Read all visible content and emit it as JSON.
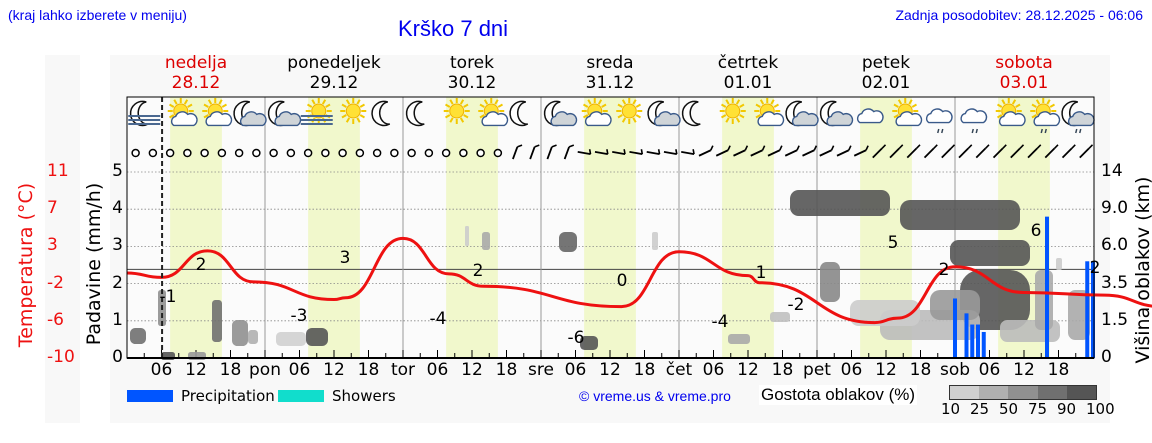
{
  "header": {
    "hint": "(kraj lahko izberete v meniju)",
    "title": "Krško 7 dni",
    "updated": "Zadnja posodobitev: 28.12.2025 - 06:06"
  },
  "days": [
    {
      "name": "nedelja",
      "date": "28.12",
      "weekend": true
    },
    {
      "name": "ponedeljek",
      "date": "29.12",
      "weekend": false
    },
    {
      "name": "torek",
      "date": "30.12",
      "weekend": false
    },
    {
      "name": "sreda",
      "date": "31.12",
      "weekend": false
    },
    {
      "name": "četrtek",
      "date": "01.01",
      "weekend": false
    },
    {
      "name": "petek",
      "date": "02.01",
      "weekend": false
    },
    {
      "name": "sobota",
      "date": "03.01",
      "weekend": true
    }
  ],
  "weather_icons": [
    "moon-fog",
    "sun-cloud",
    "sun-cloud",
    "moon-cloud",
    "moon-cloud",
    "sun-fog",
    "sun",
    "moon",
    "moon",
    "sun",
    "sun-cloud",
    "moon",
    "moon-cloud",
    "sun-cloud",
    "sun",
    "moon-cloud",
    "moon",
    "sun",
    "sun-cloud",
    "moon-cloud",
    "moon-cloud",
    "cloud",
    "sun-cloud",
    "cloud-rain",
    "cloud-rain",
    "sun-cloud",
    "sun-cloud-rain",
    "moon-cloud-rain"
  ],
  "axes": {
    "temp_label": "Temperatura (°C)",
    "temp_ticks": [
      "11",
      "7",
      "3",
      "-2",
      "-6",
      "-10"
    ],
    "precip_label": "Padavine (mm/h)",
    "precip_ticks": [
      "5",
      "4",
      "3",
      "2",
      "1",
      "0"
    ],
    "cloud_label": "Višina oblakov (km)",
    "cloud_ticks": [
      "14",
      "9.0",
      "6.0",
      "3.5",
      "1.5",
      "0"
    ],
    "x_ticks": [
      "06",
      "12",
      "18",
      "pon",
      "06",
      "12",
      "18",
      "tor",
      "06",
      "12",
      "18",
      "sre",
      "06",
      "12",
      "18",
      "čet",
      "06",
      "12",
      "18",
      "pet",
      "06",
      "12",
      "18",
      "sob",
      "06",
      "12",
      "18"
    ]
  },
  "legend": {
    "precipitation": {
      "label": "Precipitation",
      "color": "#0055ff"
    },
    "showers": {
      "label": "Showers",
      "color": "#11ddcc"
    },
    "copyright": "© vreme.us & vreme.pro",
    "cloud_density_label": "Gostota oblakov (%)",
    "cloud_density_ticks": [
      "10",
      "25",
      "50",
      "75",
      "90",
      "100"
    ],
    "cloud_density_colors": [
      "#d0d0d0",
      "#b0b0b0",
      "#909090",
      "#707070",
      "#555555"
    ]
  },
  "chart_data": {
    "type": "line",
    "title": "Krško 7 dni",
    "xlabel": "",
    "ylabel": "Temperatura (°C)",
    "ylim": [
      -10,
      11
    ],
    "secondary_axes": [
      {
        "label": "Padavine (mm/h)",
        "range": [
          0,
          5
        ]
      },
      {
        "label": "Višina oblakov (km)",
        "ticks": [
          0,
          1.5,
          3.5,
          6.0,
          9.0,
          14
        ]
      }
    ],
    "series": [
      {
        "name": "Temperature",
        "color": "#ee1111",
        "hours": [
          0,
          6,
          14,
          22,
          36,
          38,
          48,
          56,
          62,
          86,
          96,
          108,
          110,
          130,
          134,
          144,
          156,
          170,
          180,
          196,
          210,
          216,
          230,
          240,
          254,
          262,
          264,
          278,
          288,
          304,
          312,
          330,
          350,
          357,
          372,
          383,
          397,
          408
        ],
        "values": [
          -0.4,
          -0.9,
          2.1,
          -1.4,
          -3.4,
          -3.2,
          3.5,
          -0.5,
          -1.9,
          -4.2,
          2.0,
          -0.7,
          -1.5,
          -6.0,
          -5.5,
          0.3,
          -2.6,
          -2.9,
          -4.2,
          1.3,
          -2.2,
          -2.0,
          -0.4,
          0.7,
          5.1,
          2.4,
          2.1,
          1.9,
          2.4,
          3.9,
          5.2,
          6.6,
          3.2,
          2.0,
          2.2,
          2.4,
          2.4,
          2.0
        ]
      }
    ],
    "temperature_labels": [
      {
        "day": "28.12",
        "min": -1,
        "max": 2
      },
      {
        "day": "29.12",
        "min": -3,
        "max": 3
      },
      {
        "day": "30.12",
        "min": -4,
        "max": 2
      },
      {
        "day": "31.12",
        "min": -6,
        "max": 0
      },
      {
        "day": "01.01",
        "min": -4,
        "max": 1
      },
      {
        "day": "02.01",
        "min": -2,
        "max": 5
      },
      {
        "day": "03.01",
        "min": 2,
        "max": 6
      },
      {
        "day": "03.01 end",
        "value": 2
      }
    ],
    "precipitation_bars_mmh": [
      {
        "hour": 144,
        "value": 1.6
      },
      {
        "hour": 146,
        "value": 1.2
      },
      {
        "hour": 147,
        "value": 0.9
      },
      {
        "hour": 148,
        "value": 0.9
      },
      {
        "hour": 149,
        "value": 0.7
      },
      {
        "hour": 160,
        "value": 3.8
      },
      {
        "hour": 167,
        "value": 2.6
      }
    ],
    "now_marker_hour": 6.1,
    "daylight_hours": [
      7.5,
      16.5
    ]
  }
}
